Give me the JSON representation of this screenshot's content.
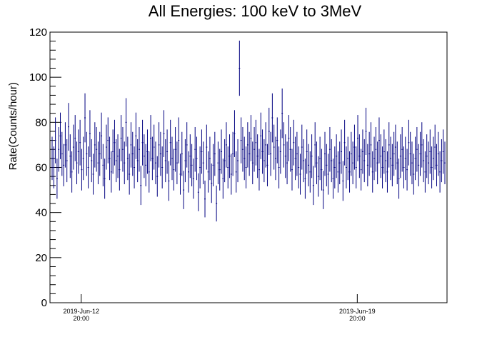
{
  "chart_data": {
    "type": "scatter",
    "title": "All Energies:  100 keV to 3MeV",
    "ylabel": "Rate(Counts/hour)",
    "xlabel": "",
    "ylim": [
      0,
      120
    ],
    "y_ticks": [
      0,
      20,
      40,
      60,
      80,
      100,
      120
    ],
    "x_ticks": [
      {
        "date": "2019-Jun-12",
        "time": "20:00",
        "hours_from_start": 19
      },
      {
        "date": "2019-Jun-19",
        "time": "20:00",
        "hours_from_start": 187
      }
    ],
    "grid": false,
    "marker_color": "#000080",
    "series": [
      {
        "error_bars": "vertical",
        "values": [
          64,
          60,
          72,
          55,
          68,
          74,
          66,
          61,
          70,
          63,
          78,
          65,
          58,
          69,
          73,
          62,
          67,
          71,
          59,
          64,
          82,
          66,
          60,
          75,
          63,
          57,
          70,
          68,
          62,
          66,
          74,
          61,
          55,
          69,
          72,
          64,
          58,
          67,
          71,
          63,
          65,
          59,
          73,
          68,
          62,
          80,
          64,
          57,
          70,
          66,
          60,
          74,
          63,
          68,
          52,
          71,
          65,
          61,
          67,
          58,
          73,
          64,
          69,
          62,
          56,
          70,
          66,
          60,
          75,
          63,
          67,
          54,
          71,
          64,
          59,
          68,
          62,
          72,
          57,
          66,
          50,
          63,
          70,
          58,
          65,
          61,
          55,
          68,
          64,
          49,
          60,
          67,
          62,
          46,
          69,
          58,
          64,
          53,
          61,
          66,
          44,
          62,
          59,
          67,
          55,
          63,
          70,
          60,
          65,
          57,
          66,
          75,
          58,
          63,
          104,
          72,
          68,
          64,
          60,
          70,
          66,
          73,
          62,
          68,
          71,
          65,
          59,
          74,
          67,
          63,
          70,
          61,
          76,
          66,
          82,
          69,
          64,
          72,
          60,
          67,
          84,
          70,
          65,
          62,
          73,
          68,
          59,
          71,
          64,
          66,
          60,
          57,
          69,
          63,
          55,
          67,
          61,
          58,
          65,
          52,
          70,
          62,
          56,
          64,
          59,
          50,
          66,
          61,
          57,
          68,
          63,
          55,
          60,
          65,
          58,
          62,
          67,
          54,
          71,
          60,
          64,
          58,
          66,
          62,
          69,
          60,
          73,
          65,
          59,
          67,
          63,
          76,
          61,
          66,
          70,
          58,
          64,
          68,
          62,
          72,
          65,
          60,
          67,
          63,
          58,
          70,
          64,
          61,
          66,
          69,
          62,
          55,
          65,
          68,
          60,
          64,
          59,
          71,
          66,
          62,
          57,
          64,
          68,
          61,
          66,
          70,
          63,
          58,
          65,
          62,
          67,
          60,
          64,
          69,
          61,
          66,
          58,
          63,
          67,
          62
        ]
      }
    ]
  }
}
